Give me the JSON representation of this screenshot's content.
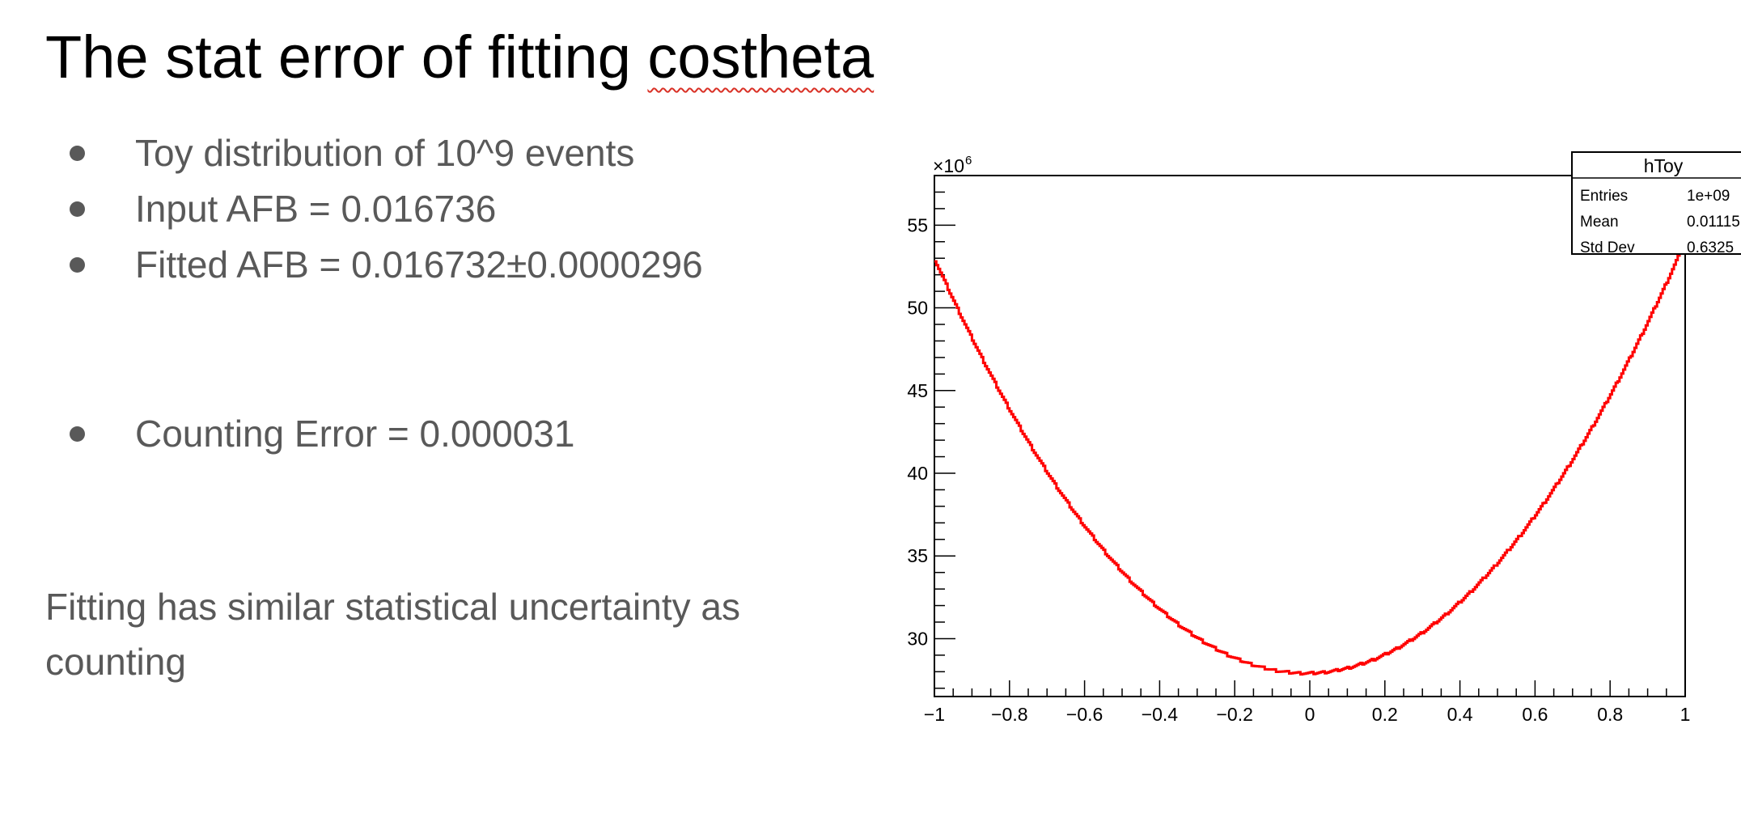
{
  "slide": {
    "title_part1": "The stat error of fitting ",
    "title_part2": "costheta",
    "bullets": [
      "Toy distribution of 10^9 events",
      "Input AFB = 0.016736",
      "Fitted AFB = 0.016732±0.0000296",
      "Counting Error = 0.000031"
    ],
    "note": "Fitting has similar statistical uncertainty as counting",
    "spellcheck_flag_color": "#d93025"
  },
  "chart_data": {
    "type": "line",
    "y_multiplier_label": "×10",
    "y_multiplier_exponent": "6",
    "xlim": [
      -1,
      1
    ],
    "ylim": [
      26.5,
      58
    ],
    "x_ticks": [
      {
        "value": -1,
        "label": "−1"
      },
      {
        "value": -0.8,
        "label": "−0.8"
      },
      {
        "value": -0.6,
        "label": "−0.6"
      },
      {
        "value": -0.4,
        "label": "−0.4"
      },
      {
        "value": -0.2,
        "label": "−0.2"
      },
      {
        "value": 0,
        "label": "0"
      },
      {
        "value": 0.2,
        "label": "0.2"
      },
      {
        "value": 0.4,
        "label": "0.4"
      },
      {
        "value": 0.6,
        "label": "0.6"
      },
      {
        "value": 0.8,
        "label": "0.8"
      },
      {
        "value": 1,
        "label": "1"
      }
    ],
    "y_ticks": [
      {
        "value": 30,
        "label": "30"
      },
      {
        "value": 35,
        "label": "35"
      },
      {
        "value": 40,
        "label": "40"
      },
      {
        "value": 45,
        "label": "45"
      },
      {
        "value": 50,
        "label": "50"
      },
      {
        "value": 55,
        "label": "55"
      }
    ],
    "series_color": "#ff0000",
    "curve_model": {
      "form": "a + b*x + c*x^2",
      "a": 27.91,
      "b": 0.49,
      "c": 25.59
    },
    "stats_box": {
      "title": "hToy",
      "rows": [
        {
          "label": "Entries",
          "value": "1e+09"
        },
        {
          "label": "Mean",
          "value": "0.01115"
        },
        {
          "label": "Std Dev",
          "value": "0.6325"
        }
      ]
    }
  }
}
